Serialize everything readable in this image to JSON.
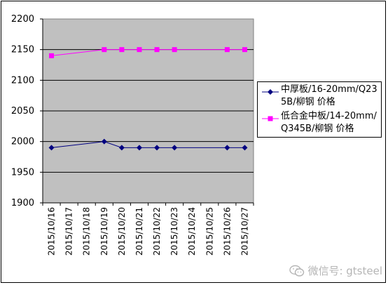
{
  "chart_data": {
    "type": "line",
    "categories": [
      "2015/10/16",
      "2015/10/17",
      "2015/10/18",
      "2015/10/19",
      "2015/10/20",
      "2015/10/21",
      "2015/10/22",
      "2015/10/23",
      "2015/10/24",
      "2015/10/25",
      "2015/10/26",
      "2015/10/27"
    ],
    "ylim": [
      1900,
      2200
    ],
    "yticks": [
      1900,
      1950,
      2000,
      2050,
      2100,
      2150,
      2200
    ],
    "grid": true,
    "legend_position": "right",
    "plot_background": "#C0C0C0",
    "series": [
      {
        "name": "中厚板/16-20mm/Q235B/柳钢 价格",
        "color": "#000080",
        "marker": "diamond",
        "values": [
          1990,
          null,
          null,
          2000,
          1990,
          1990,
          1990,
          1990,
          null,
          null,
          1990,
          1990
        ]
      },
      {
        "name": "低合金中板/14-20mm/Q345B/柳钢 价格",
        "color": "#FF00FF",
        "marker": "square",
        "values": [
          2140,
          null,
          null,
          2150,
          2150,
          2150,
          2150,
          2150,
          null,
          null,
          2150,
          2150
        ]
      }
    ]
  },
  "watermark": {
    "text": "微信号: gtsteel",
    "icon": "wechat-icon"
  }
}
